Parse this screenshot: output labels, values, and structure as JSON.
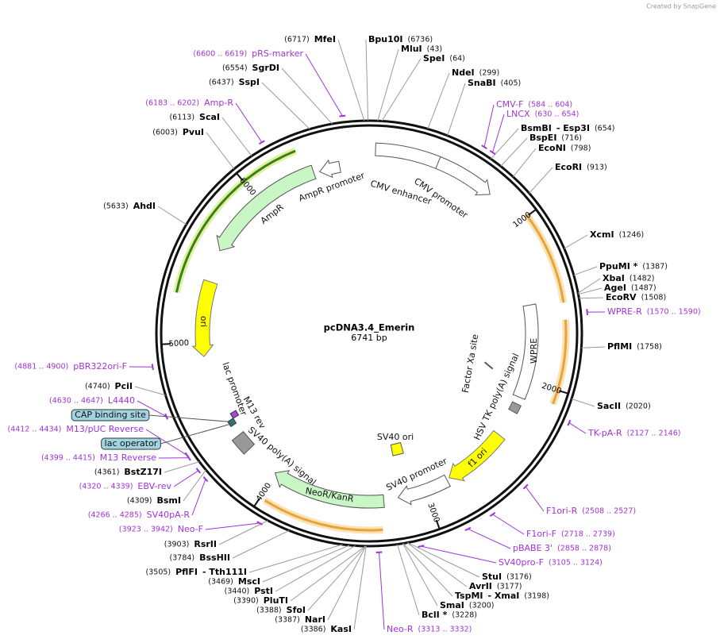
{
  "credit": "Created by SnapGene",
  "title": "pcDNA3.4_Emerin",
  "size": "6741 bp",
  "ticks": [
    1000,
    2000,
    3000,
    4000,
    5000,
    6000
  ],
  "features": [
    "CMV enhancer",
    "CMV promoter",
    "AmpR promoter",
    "AmpR",
    "ori",
    "lac promoter",
    "M13 rev",
    "SV40 poly(A) signal",
    "NeoR/KanR",
    "SV40 ori",
    "SV40 promoter",
    "f1 ori",
    "HSV TK poly(A) signal",
    "Factor Xa site",
    "WPRE"
  ],
  "boxed_features": [
    "CAP binding site",
    "lac operator"
  ],
  "sites": [
    {
      "name": "MfeI",
      "position": "(6717)"
    },
    {
      "name": "Bpu10I",
      "position": "(6736)"
    },
    {
      "name": "MluI",
      "position": "(43)"
    },
    {
      "name": "SpeI",
      "position": "(64)"
    },
    {
      "name": "NdeI",
      "position": "(299)"
    },
    {
      "name": "SnaBI",
      "position": "(405)"
    },
    {
      "name": "BsmBI",
      "name2": "- Esp3I",
      "position": "(654)"
    },
    {
      "name": "BspEI",
      "position": "(716)"
    },
    {
      "name": "EcoNI",
      "position": "(798)"
    },
    {
      "name": "EcoRI",
      "position": "(913)"
    },
    {
      "name": "XcmI",
      "position": "(1246)"
    },
    {
      "name": "PpuMI *",
      "position": "(1387)"
    },
    {
      "name": "XbaI",
      "position": "(1482)"
    },
    {
      "name": "AgeI",
      "position": "(1487)"
    },
    {
      "name": "EcoRV",
      "position": "(1508)"
    },
    {
      "name": "PflMI",
      "position": "(1758)"
    },
    {
      "name": "SacII",
      "position": "(2020)"
    },
    {
      "name": "StuI",
      "position": "(3176)"
    },
    {
      "name": "AvrII",
      "position": "(3177)"
    },
    {
      "name": "TspMI",
      "name2": "- XmaI",
      "position": "(3198)"
    },
    {
      "name": "SmaI",
      "position": "(3200)"
    },
    {
      "name": "BclI *",
      "position": "(3228)"
    },
    {
      "name": "KasI",
      "position": "(3386)"
    },
    {
      "name": "NarI",
      "position": "(3387)"
    },
    {
      "name": "SfoI",
      "position": "(3388)"
    },
    {
      "name": "PluTI",
      "position": "(3390)"
    },
    {
      "name": "PstI",
      "position": "(3440)"
    },
    {
      "name": "MscI",
      "position": "(3469)"
    },
    {
      "name": "PflFI",
      "name2": "- Tth111I",
      "position": "(3505)"
    },
    {
      "name": "BssHII",
      "position": "(3784)"
    },
    {
      "name": "RsrII",
      "position": "(3903)"
    },
    {
      "name": "BsmI",
      "position": "(4309)"
    },
    {
      "name": "BstZ17I",
      "position": "(4361)"
    },
    {
      "name": "PciI",
      "position": "(4740)"
    },
    {
      "name": "AhdI",
      "position": "(5633)"
    },
    {
      "name": "PvuI",
      "position": "(6003)"
    },
    {
      "name": "ScaI",
      "position": "(6113)"
    },
    {
      "name": "SspI",
      "position": "(6437)"
    },
    {
      "name": "SgrDI",
      "position": "(6554)"
    }
  ],
  "primers": [
    {
      "name": "pRS-marker",
      "range": "(6600 .. 6619)"
    },
    {
      "name": "CMV-F",
      "range": "(584 .. 604)"
    },
    {
      "name": "LNCX",
      "range": "(630 .. 654)"
    },
    {
      "name": "WPRE-R",
      "range": "(1570 .. 1590)"
    },
    {
      "name": "TK-pA-R",
      "range": "(2127 .. 2146)"
    },
    {
      "name": "F1ori-R",
      "range": "(2508 .. 2527)"
    },
    {
      "name": "F1ori-F",
      "range": "(2718 .. 2739)"
    },
    {
      "name": "pBABE 3'",
      "range": "(2858 .. 2878)"
    },
    {
      "name": "SV40pro-F",
      "range": "(3105 .. 3124)"
    },
    {
      "name": "Neo-R",
      "range": "(3313 .. 3332)"
    },
    {
      "name": "Neo-F",
      "range": "(3923 .. 3942)"
    },
    {
      "name": "SV40pA-R",
      "range": "(4266 .. 4285)"
    },
    {
      "name": "EBV-rev",
      "range": "(4320 .. 4339)"
    },
    {
      "name": "M13 Reverse",
      "range": "(4399 .. 4415)"
    },
    {
      "name": "M13/pUC Reverse",
      "range": "(4412 .. 4434)"
    },
    {
      "name": "L4440",
      "range": "(4630 .. 4647)"
    },
    {
      "name": "pBR322ori-F",
      "range": "(4881 .. 4900)"
    },
    {
      "name": "Amp-R",
      "range": "(6183 .. 6202)"
    }
  ]
}
